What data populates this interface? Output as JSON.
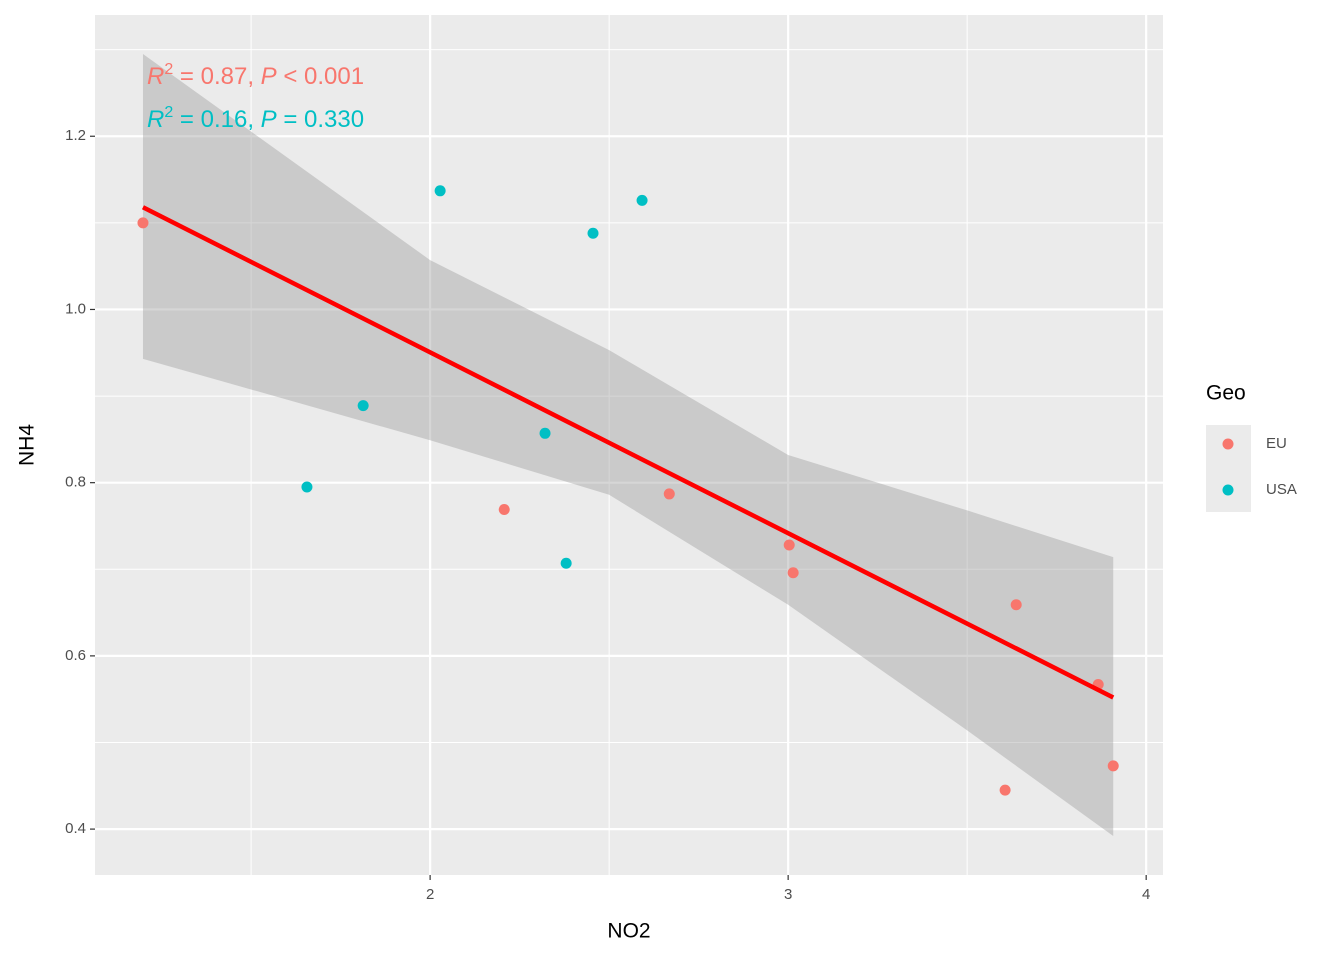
{
  "chart_data": {
    "type": "scatter",
    "x_label": "NO2",
    "y_label": "NH4",
    "xlim": [
      1.064,
      4.047
    ],
    "ylim": [
      0.347,
      1.34
    ],
    "xticks": [
      2,
      3,
      4
    ],
    "yticks": [
      0.4,
      0.6,
      0.8,
      1.0,
      1.2
    ],
    "xminor": [
      1.5,
      2.5,
      3.5
    ],
    "yminor": [
      0.5,
      0.7,
      0.9,
      1.1,
      1.3
    ],
    "yticks_labels": [
      "0.4",
      "0.6",
      "0.8",
      "1.0",
      "1.2"
    ],
    "legend_title": "Geo",
    "legend_position": "right",
    "series": [
      {
        "name": "EU",
        "color": "#F8766D",
        "x": [
          1.198,
          2.207,
          2.668,
          3.003,
          3.014,
          3.637,
          3.606,
          3.866,
          3.908
        ],
        "values": [
          1.1,
          0.769,
          0.787,
          0.728,
          0.696,
          0.659,
          0.445,
          0.567,
          0.473
        ]
      },
      {
        "name": "USA",
        "color": "#00BFC4",
        "x": [
          1.656,
          1.813,
          2.028,
          2.321,
          2.38,
          2.455,
          2.592
        ],
        "values": [
          0.795,
          0.889,
          1.137,
          0.857,
          0.707,
          1.088,
          1.126
        ]
      }
    ],
    "fit": {
      "color": "#FF0000",
      "x": [
        1.198,
        3.908
      ],
      "y": [
        1.118,
        0.552
      ]
    },
    "band": {
      "color": "#999999",
      "x": [
        1.198,
        2,
        2.5,
        3,
        3.5,
        3.908
      ],
      "upper": [
        1.295,
        1.057,
        0.953,
        0.832,
        0.768,
        0.714
      ],
      "lower": [
        0.943,
        0.849,
        0.786,
        0.659,
        0.514,
        0.392
      ]
    },
    "annotations": [
      {
        "parts": [
          "R",
          "2",
          " = 0.87, ",
          "P",
          " < 0.001"
        ],
        "color": "#F8766D"
      },
      {
        "parts": [
          "R",
          "2",
          " = 0.16, ",
          "P",
          " = 0.330"
        ],
        "color": "#00BFC4"
      }
    ]
  }
}
